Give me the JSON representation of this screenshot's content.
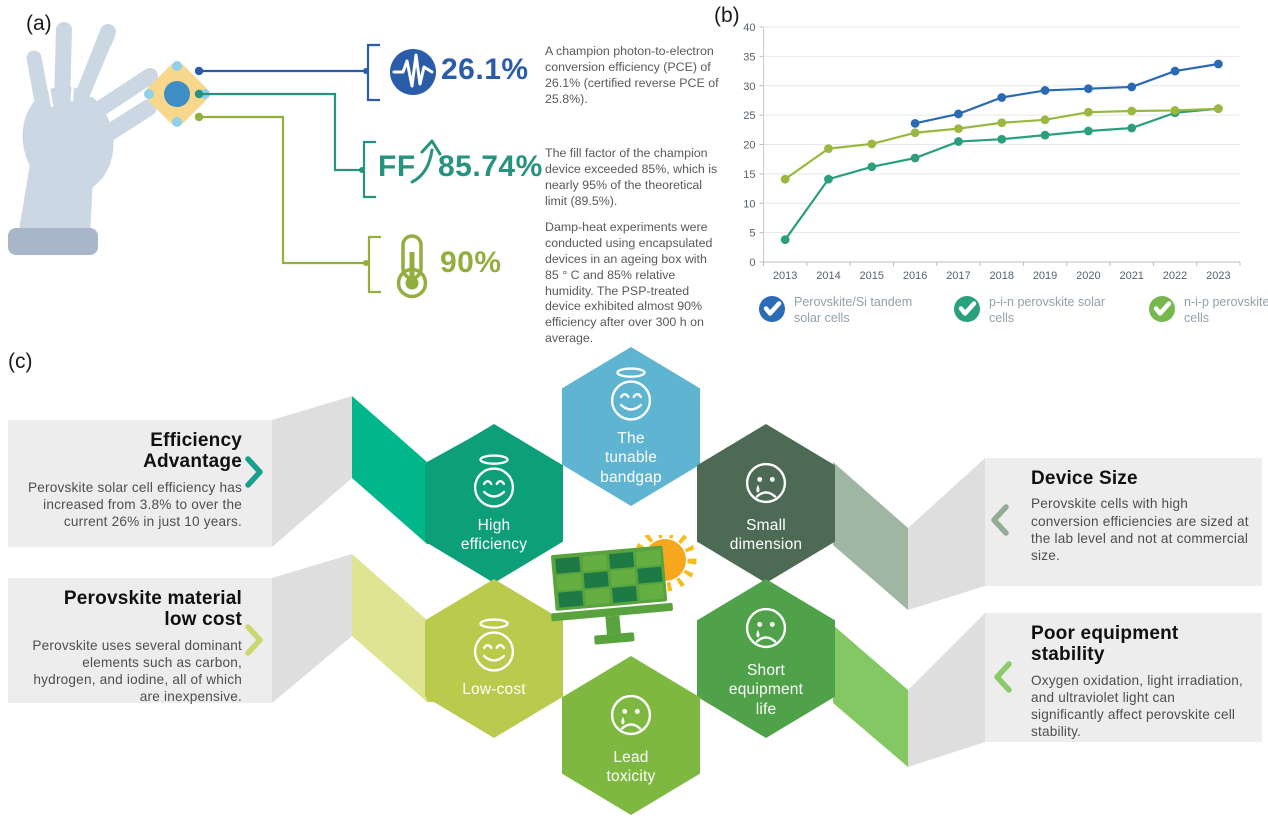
{
  "panel_a": {
    "label": "(a)",
    "stats": [
      {
        "value": "26.1%",
        "icon": "pulse-icon",
        "description": "A champion photon-to-electron conversion efficiency (PCE) of 26.1% (certified reverse PCE of 25.8%)."
      },
      {
        "prefix": "FF",
        "value": "85.74%",
        "icon": "up-arrow-icon",
        "description": "The fill factor of the champion device exceeded 85%, which is nearly 95% of the theoretical limit (89.5%)."
      },
      {
        "value": "90%",
        "icon": "thermometer-icon",
        "description": "Damp-heat experiments were conducted using encapsulated devices in an ageing box with 85 ° C and 85% relative humidity. The PSP-treated device exhibited almost 90% efficiency after over 300 h on average."
      }
    ],
    "colors": {
      "stat1": "#2b5ca8",
      "stat2": "#27927f",
      "stat3": "#93ae3e"
    }
  },
  "panel_b": {
    "label": "(b)"
  },
  "chart_data": {
    "type": "line",
    "x": [
      2013,
      2014,
      2015,
      2016,
      2017,
      2018,
      2019,
      2020,
      2021,
      2022,
      2023
    ],
    "series": [
      {
        "name": "Perovskite/Si tandem solar cells",
        "color": "#2a6ab2",
        "values": [
          null,
          null,
          null,
          23.6,
          25.2,
          28.0,
          29.2,
          29.5,
          29.8,
          32.5,
          33.7
        ]
      },
      {
        "name": "p-i-n perovskite solar cells",
        "color": "#2b9e7e",
        "values": [
          3.8,
          14.1,
          16.2,
          17.7,
          20.5,
          20.9,
          21.6,
          22.3,
          22.8,
          25.4,
          26.1
        ]
      },
      {
        "name": "n-i-p perovskite solar cells",
        "color": "#9ab83e",
        "values": [
          14.1,
          19.3,
          20.1,
          22.0,
          22.7,
          23.7,
          24.2,
          25.5,
          25.7,
          25.8,
          26.1
        ]
      }
    ],
    "ylim": [
      0,
      40
    ],
    "ytick_step": 5,
    "grid": true,
    "legend_position": "bottom",
    "legend": [
      {
        "label": "Perovskite/Si tandem solar cells",
        "circle_color": "#2b6cb5"
      },
      {
        "label": "p-i-n perovskite solar cells",
        "circle_color": "#2aa07e"
      },
      {
        "label": "n-i-p perovskite solar cells",
        "circle_color": "#76b84d"
      }
    ]
  },
  "panel_c": {
    "label": "(c)",
    "left_boxes": [
      {
        "title": "Efficiency Advantage",
        "body": "Perovskite solar cell efficiency has increased from 3.8% to over the current 26% in just 10 years.",
        "arrow_color": "#18a08c"
      },
      {
        "title": "Perovskite material low cost",
        "body": "Perovskite uses several dominant elements such as carbon, hydrogen, and iodine, all of which are inexpensive.",
        "arrow_color": "#ccd66e"
      }
    ],
    "right_boxes": [
      {
        "title": "Device Size",
        "body": "Perovskite cells with high conversion efficiencies are sized at the lab level and not at commercial size.",
        "arrow_color": "#93ac98"
      },
      {
        "title": "Poor equipment stability",
        "body": "Oxygen oxidation, light irradiation, and ultraviolet light can significantly affect perovskite cell stability.",
        "arrow_color": "#8bc96b"
      }
    ],
    "hexagons": [
      {
        "label": "The tunable bandgap",
        "mood": "happy",
        "color": "#5fb5d1"
      },
      {
        "label": "High efficiency",
        "mood": "happy",
        "color": "#0d9e7a"
      },
      {
        "label": "Small dimension",
        "mood": "sad",
        "color": "#4d6b54"
      },
      {
        "label": "Low-cost",
        "mood": "happy",
        "color": "#b9ca4d"
      },
      {
        "label": "Short equipment life",
        "mood": "sad",
        "color": "#4fa24a"
      },
      {
        "label": "Lead toxicity",
        "mood": "sad",
        "color": "#7fb841"
      }
    ],
    "ribbon_colors": {
      "tl_bright": "#00b78c",
      "tl_dark": "#0d9e7a",
      "bl_pale": "#dfe493",
      "bl_dark": "#bfd055",
      "tr_sage": "#9fb7a2",
      "br_green": "#84c863",
      "fold": "#dedede",
      "box_bg": "#ededed"
    }
  }
}
